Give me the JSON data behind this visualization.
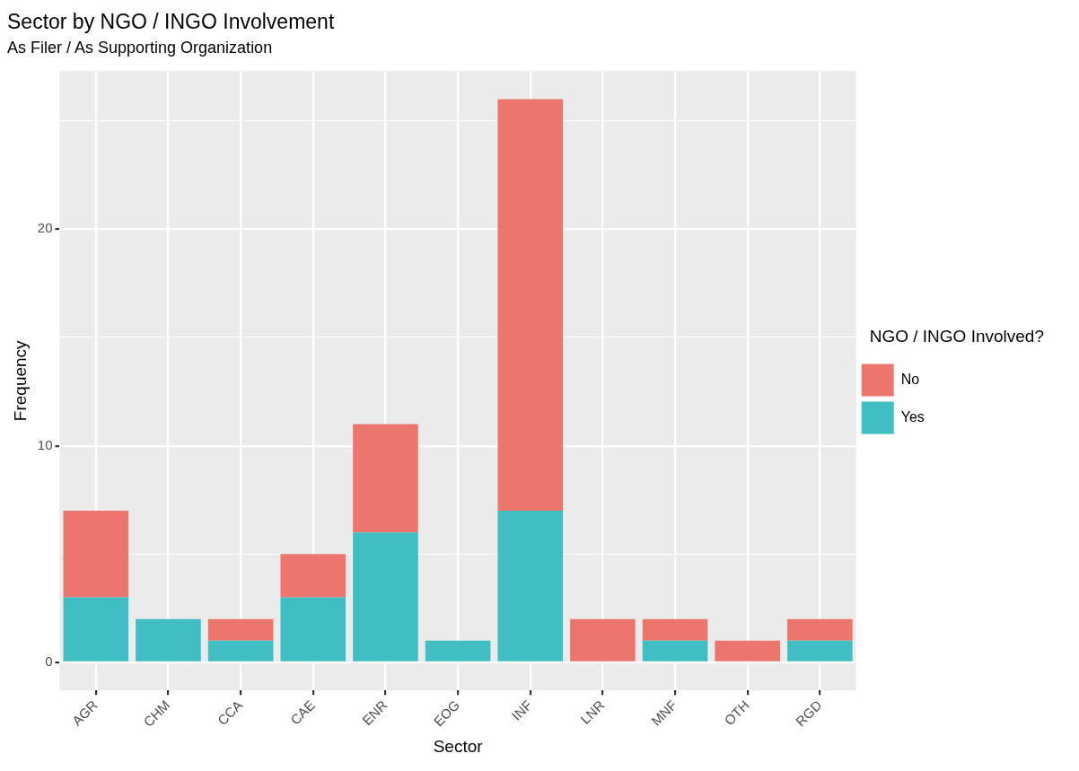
{
  "chart_data": {
    "type": "bar",
    "title": "Sector by NGO / INGO Involvement",
    "subtitle": "As Filer / As Supporting Organization",
    "xlabel": "Sector",
    "ylabel": "Frequency",
    "legend_title": "NGO / INGO Involved?",
    "categories": [
      "AGR",
      "CHM",
      "CCA",
      "CAE",
      "ENR",
      "EOG",
      "INF",
      "LNR",
      "MNF",
      "OTH",
      "RGD"
    ],
    "series": [
      {
        "name": "Yes",
        "color": "#41bec4",
        "values": [
          3,
          2,
          1,
          3,
          6,
          1,
          7,
          0,
          1,
          0,
          1
        ]
      },
      {
        "name": "No",
        "color": "#ec766e",
        "values": [
          4,
          0,
          1,
          2,
          5,
          0,
          19,
          2,
          1,
          1,
          1
        ]
      }
    ],
    "stacked": true,
    "ylim": [
      -1.3,
      27.3
    ],
    "yticks": [
      0,
      {
        "value": 5,
        "label": null
      },
      10,
      {
        "value": 15,
        "label": null
      },
      20,
      {
        "value": 25,
        "label": null
      }
    ],
    "grid": true,
    "legend": "right"
  }
}
